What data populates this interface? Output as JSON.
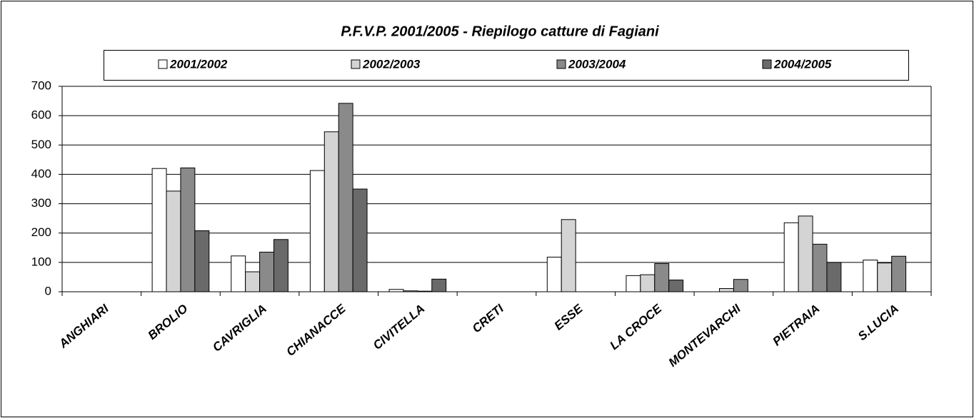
{
  "chart_data": {
    "type": "bar",
    "title": "P.F.V.P. 2001/2005 - Riepilogo catture di Fagiani",
    "categories": [
      "ANGHIARI",
      "BROLIO",
      "CAVRIGLIA",
      "CHIANACCE",
      "CIVITELLA",
      "CRETI",
      "ESSE",
      "LA CROCE",
      "MONTEVARCHI",
      "PIETRAIA",
      "S.LUCIA"
    ],
    "series": [
      {
        "name": "2001/2002",
        "color": "#ffffff",
        "values": [
          0,
          420,
          122,
          413,
          8,
          0,
          118,
          55,
          0,
          235,
          108
        ]
      },
      {
        "name": "2002/2003",
        "color": "#d4d4d4",
        "values": [
          0,
          343,
          68,
          545,
          3,
          0,
          246,
          58,
          11,
          258,
          98
        ]
      },
      {
        "name": "2003/2004",
        "color": "#8a8a8a",
        "values": [
          0,
          422,
          135,
          642,
          2,
          0,
          0,
          96,
          42,
          162,
          121
        ]
      },
      {
        "name": "2004/2005",
        "color": "#6a6a6a",
        "values": [
          0,
          208,
          178,
          350,
          43,
          0,
          0,
          40,
          0,
          100,
          0
        ]
      }
    ],
    "ylim": [
      0,
      700
    ],
    "yticks": [
      0,
      100,
      200,
      300,
      400,
      500,
      600,
      700
    ],
    "grid": true,
    "legend": "top"
  }
}
